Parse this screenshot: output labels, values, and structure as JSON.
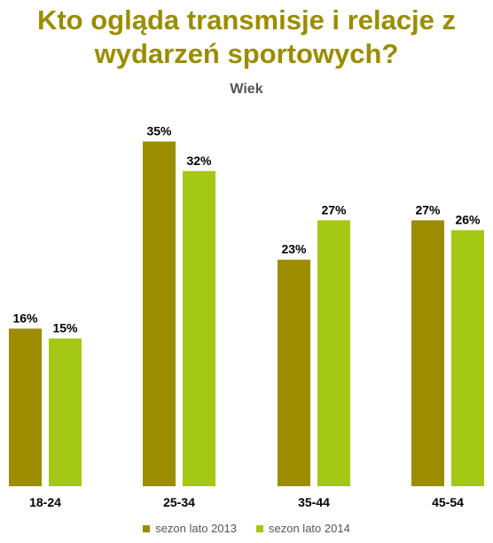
{
  "chart_data": {
    "type": "bar",
    "title": "Kto ogląda transmisje i relacje z wydarzeń sportowych?",
    "subtitle": "Wiek",
    "categories": [
      "18-24",
      "25-34",
      "35-44",
      "45-54"
    ],
    "series": [
      {
        "name": "sezon lato 2013",
        "values": [
          16,
          35,
          23,
          27
        ],
        "labels": [
          "16%",
          "35%",
          "23%",
          "27%"
        ],
        "color": "#9b8c00"
      },
      {
        "name": "sezon lato 2014",
        "values": [
          15,
          32,
          27,
          26
        ],
        "labels": [
          "15%",
          "32%",
          "27%",
          "26%"
        ],
        "color": "#a4c813"
      }
    ],
    "value_unit": "%",
    "grid": false,
    "legend_position": "bottom"
  }
}
